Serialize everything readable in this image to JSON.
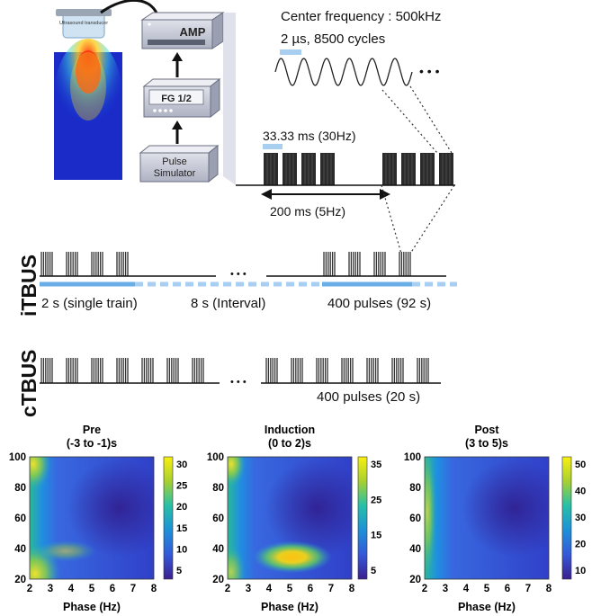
{
  "setup": {
    "transducer_label": "Ultrasound transducer",
    "amp_label": "AMP",
    "fg_label": "FG 1/2",
    "pulse_label_line1": "Pulse",
    "pulse_label_line2": "Simulator"
  },
  "waveform": {
    "center_frequency": "Center frequency : 500kHz",
    "cycles": "2 µs, 8500 cycles",
    "ellipsis": "• • •"
  },
  "burst": {
    "period": "33.33 ms (30Hz)",
    "interval": "200 ms (5Hz)"
  },
  "itbus": {
    "label": "iTBUS",
    "single_train": "2 s (single train)",
    "interval": "8 s (Interval)",
    "pulses": "400 pulses (92 s)",
    "ellipsis": "• • •"
  },
  "ctbus": {
    "label": "cTBUS",
    "pulses": "400 pulses (20 s)",
    "ellipsis": "• • •"
  },
  "colors": {
    "blue_bar": "#6aaee8",
    "pulse_fill": "#2b2b2b",
    "box_fill": "#c9ccd6"
  },
  "heatmaps": [
    {
      "title_line1": "Pre",
      "title_line2": "(-3 to -1)s",
      "xlabel": "Phase (Hz)",
      "xticks": [
        "2",
        "3",
        "4",
        "5",
        "6",
        "7",
        "8"
      ],
      "yticks": [
        "100",
        "80",
        "60",
        "40",
        "20"
      ],
      "cbar_ticks": [
        "30",
        "25",
        "20",
        "15",
        "10",
        "5"
      ]
    },
    {
      "title_line1": "Induction",
      "title_line2": "(0 to 2)s",
      "xlabel": "Phase (Hz)",
      "xticks": [
        "2",
        "3",
        "4",
        "5",
        "6",
        "7",
        "8"
      ],
      "yticks": [
        "100",
        "80",
        "60",
        "40",
        "20"
      ],
      "cbar_ticks": [
        "35",
        "25",
        "15",
        "5"
      ]
    },
    {
      "title_line1": "Post",
      "title_line2": "(3 to 5)s",
      "xlabel": "Phase (Hz)",
      "xticks": [
        "2",
        "3",
        "4",
        "5",
        "6",
        "7",
        "8"
      ],
      "yticks": [
        "100",
        "80",
        "60",
        "40",
        "20"
      ],
      "cbar_ticks": [
        "50",
        "40",
        "30",
        "20",
        "10"
      ]
    }
  ]
}
